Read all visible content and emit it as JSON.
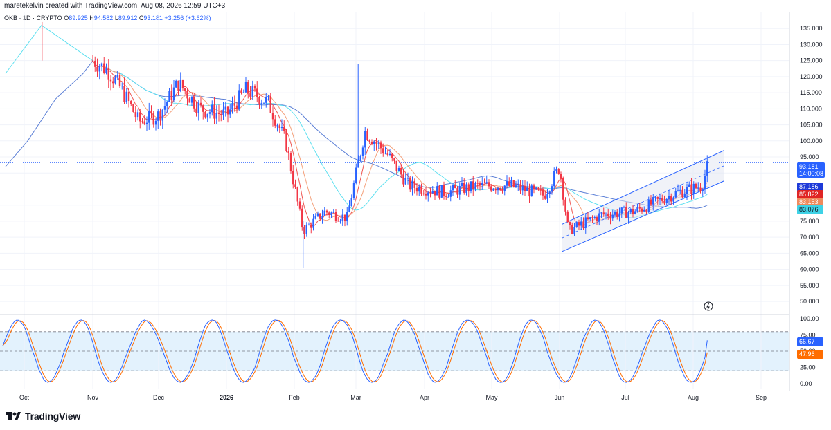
{
  "header": {
    "credit": "maretekelvin created with TradingView.com, Aug 08, 2026 12:59 UTC+3",
    "symbol": "OKB · 1D · CRYPTO",
    "o_label": "O",
    "o_value": "89.925",
    "h_label": "H",
    "h_value": "94.582",
    "l_label": "L",
    "l_value": "89.912",
    "c_label": "C",
    "c_value": "93.181",
    "change": "+3.256 (+3.62%)"
  },
  "price_badges": {
    "last_price": "93.181",
    "countdown": "14:00:08",
    "ma_blue": "87.186",
    "ma_red": "85.822",
    "ma_orange": "83.153",
    "ma_cyan": "83.076",
    "osc_k": "66.67",
    "osc_d": "47.96"
  },
  "colors": {
    "up": "#2962ff",
    "down": "#f23645",
    "ma_blue": "#5b7fd6",
    "ma_red": "#ef5350",
    "ma_orange": "#f4a07a",
    "ma_cyan": "#5ee0f0",
    "channel_fill": "#e3e7f2",
    "osc_band": "#e3f2fd",
    "osc_k": "#2962ff",
    "osc_d": "#ff6d00"
  },
  "logo": {
    "text": "TradingView",
    "icon": "tradingview-logo-icon"
  },
  "chart_data": {
    "type": "candlestick",
    "ylim": [
      47,
      140
    ],
    "y_ticks": [
      "135.000",
      "130.000",
      "125.000",
      "120.000",
      "115.000",
      "110.000",
      "105.000",
      "100.000",
      "95.000",
      "90.000",
      "85.000",
      "80.000",
      "75.000",
      "70.000",
      "65.000",
      "60.000",
      "55.000",
      "50.000"
    ],
    "x_ticks": [
      "Oct",
      "Nov",
      "Dec",
      "2026",
      "Feb",
      "Mar",
      "Apr",
      "May",
      "Jun",
      "Jul",
      "Aug",
      "Sep"
    ],
    "horizontal_line": 99,
    "last_close": 93.181,
    "price_path": [
      {
        "x": "Nov 01",
        "y": 125
      },
      {
        "x": "Nov 08",
        "y": 122
      },
      {
        "x": "Nov 15",
        "y": 115
      },
      {
        "x": "Nov 22",
        "y": 106
      },
      {
        "x": "Dec 01",
        "y": 108
      },
      {
        "x": "Dec 10",
        "y": 118
      },
      {
        "x": "Dec 20",
        "y": 110
      },
      {
        "x": "Jan 01",
        "y": 108
      },
      {
        "x": "Jan 10",
        "y": 116
      },
      {
        "x": "Jan 20",
        "y": 112
      },
      {
        "x": "Jan 28",
        "y": 100
      },
      {
        "x": "Feb 05",
        "y": 72
      },
      {
        "x": "Feb 15",
        "y": 78
      },
      {
        "x": "Feb 25",
        "y": 76
      },
      {
        "x": "Mar 05",
        "y": 103
      },
      {
        "x": "Mar 15",
        "y": 96
      },
      {
        "x": "Mar 25",
        "y": 86
      },
      {
        "x": "Apr 10",
        "y": 84
      },
      {
        "x": "Apr 25",
        "y": 86
      },
      {
        "x": "May 10",
        "y": 86
      },
      {
        "x": "May 25",
        "y": 83
      },
      {
        "x": "Jun 01",
        "y": 92
      },
      {
        "x": "Jun 05",
        "y": 72
      },
      {
        "x": "Jun 20",
        "y": 77
      },
      {
        "x": "Jul 05",
        "y": 78
      },
      {
        "x": "Jul 25",
        "y": 84
      },
      {
        "x": "Aug 05",
        "y": 86
      },
      {
        "x": "Aug 08",
        "y": 93.2
      }
    ],
    "channel": {
      "lower_start": {
        "x": "Jun 02",
        "y": 65.5
      },
      "lower_end": {
        "x": "Aug 15",
        "y": 87.5
      },
      "upper_start": {
        "x": "Jun 02",
        "y": 74
      },
      "upper_end": {
        "x": "Aug 15",
        "y": 97
      }
    },
    "oscillator": {
      "type": "stochastic_rsi",
      "ylim": [
        0,
        100
      ],
      "y_ticks": [
        "100.00",
        "75.00",
        "50.00",
        "25.00",
        "0.00"
      ],
      "upper_band": 80,
      "lower_band": 20,
      "k_last": 66.67,
      "d_last": 47.96
    }
  }
}
